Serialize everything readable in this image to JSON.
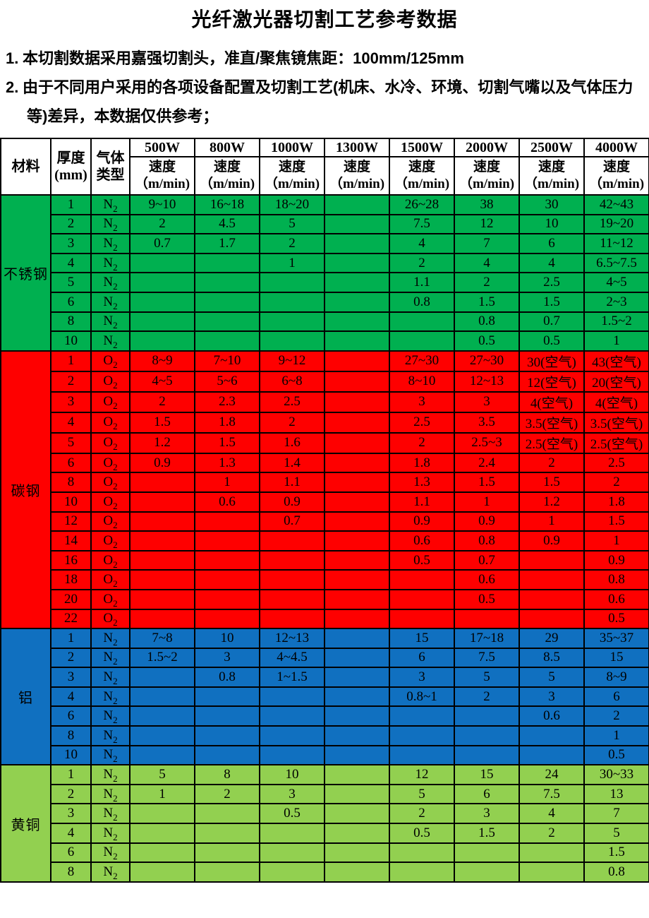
{
  "title": "光纤激光器切割工艺参考数据",
  "notes": [
    {
      "label": "1.",
      "text": "本切割数据采用嘉强切割头，准直/聚焦镜焦距：100mm/125mm"
    },
    {
      "label": "2.",
      "text": "由于不同用户采用的各项设备配置及切割工艺(机床、水冷、环境、切割气嘴以及气体压力等)差异，本数据仅供参考；"
    }
  ],
  "table": {
    "header": {
      "material": "材料",
      "thickness_line1": "厚度",
      "thickness_line2": "(mm)",
      "gas_line1": "气体",
      "gas_line2": "类型",
      "powers": [
        "500W",
        "800W",
        "1000W",
        "1300W",
        "1500W",
        "2000W",
        "2500W",
        "4000W"
      ],
      "speed_line1": "速度",
      "speed_line2": "（m/min)"
    },
    "sections": [
      {
        "material": "不锈钢",
        "color": "#00B050",
        "gas": "N2",
        "rows": [
          {
            "thickness": "1",
            "speeds": [
              "9~10",
              "16~18",
              "18~20",
              "",
              "26~28",
              "38",
              "30",
              "42~43"
            ]
          },
          {
            "thickness": "2",
            "speeds": [
              "2",
              "4.5",
              "5",
              "",
              "7.5",
              "12",
              "10",
              "19~20"
            ]
          },
          {
            "thickness": "3",
            "speeds": [
              "0.7",
              "1.7",
              "2",
              "",
              "4",
              "7",
              "6",
              "11~12"
            ]
          },
          {
            "thickness": "4",
            "speeds": [
              "",
              "",
              "1",
              "",
              "2",
              "4",
              "4",
              "6.5~7.5"
            ]
          },
          {
            "thickness": "5",
            "speeds": [
              "",
              "",
              "",
              "",
              "1.1",
              "2",
              "2.5",
              "4~5"
            ]
          },
          {
            "thickness": "6",
            "speeds": [
              "",
              "",
              "",
              "",
              "0.8",
              "1.5",
              "1.5",
              "2~3"
            ]
          },
          {
            "thickness": "8",
            "speeds": [
              "",
              "",
              "",
              "",
              "",
              "0.8",
              "0.7",
              "1.5~2"
            ]
          },
          {
            "thickness": "10",
            "speeds": [
              "",
              "",
              "",
              "",
              "",
              "0.5",
              "0.5",
              "1"
            ]
          }
        ]
      },
      {
        "material": "碳钢",
        "color": "#FE0000",
        "gas": "O2",
        "rows": [
          {
            "thickness": "1",
            "speeds": [
              "8~9",
              "7~10",
              "9~12",
              "",
              "27~30",
              "27~30",
              "30(空气)",
              "43(空气)"
            ]
          },
          {
            "thickness": "2",
            "speeds": [
              "4~5",
              "5~6",
              "6~8",
              "",
              "8~10",
              "12~13",
              "12(空气)",
              "20(空气)"
            ]
          },
          {
            "thickness": "3",
            "speeds": [
              "2",
              "2.3",
              "2.5",
              "",
              "3",
              "3",
              "4(空气)",
              "4(空气)"
            ]
          },
          {
            "thickness": "4",
            "speeds": [
              "1.5",
              "1.8",
              "2",
              "",
              "2.5",
              "3.5",
              "3.5(空气)",
              "3.5(空气)"
            ]
          },
          {
            "thickness": "5",
            "speeds": [
              "1.2",
              "1.5",
              "1.6",
              "",
              "2",
              "2.5~3",
              "2.5(空气)",
              "2.5(空气)"
            ]
          },
          {
            "thickness": "6",
            "speeds": [
              "0.9",
              "1.3",
              "1.4",
              "",
              "1.8",
              "2.4",
              "2",
              "2.5"
            ]
          },
          {
            "thickness": "8",
            "speeds": [
              "",
              "1",
              "1.1",
              "",
              "1.3",
              "1.5",
              "1.5",
              "2"
            ]
          },
          {
            "thickness": "10",
            "speeds": [
              "",
              "0.6",
              "0.9",
              "",
              "1.1",
              "1",
              "1.2",
              "1.8"
            ]
          },
          {
            "thickness": "12",
            "speeds": [
              "",
              "",
              "0.7",
              "",
              "0.9",
              "0.9",
              "1",
              "1.5"
            ]
          },
          {
            "thickness": "14",
            "speeds": [
              "",
              "",
              "",
              "",
              "0.6",
              "0.8",
              "0.9",
              "1"
            ]
          },
          {
            "thickness": "16",
            "speeds": [
              "",
              "",
              "",
              "",
              "0.5",
              "0.7",
              "",
              "0.9"
            ]
          },
          {
            "thickness": "18",
            "speeds": [
              "",
              "",
              "",
              "",
              "",
              "0.6",
              "",
              "0.8"
            ]
          },
          {
            "thickness": "20",
            "speeds": [
              "",
              "",
              "",
              "",
              "",
              "0.5",
              "",
              "0.6"
            ]
          },
          {
            "thickness": "22",
            "speeds": [
              "",
              "",
              "",
              "",
              "",
              "",
              "",
              "0.5"
            ]
          }
        ]
      },
      {
        "material": "铝",
        "color": "#1070C0",
        "gas": "N2",
        "rows": [
          {
            "thickness": "1",
            "speeds": [
              "7~8",
              "10",
              "12~13",
              "",
              "15",
              "17~18",
              "29",
              "35~37"
            ]
          },
          {
            "thickness": "2",
            "speeds": [
              "1.5~2",
              "3",
              "4~4.5",
              "",
              "6",
              "7.5",
              "8.5",
              "15"
            ]
          },
          {
            "thickness": "3",
            "speeds": [
              "",
              "0.8",
              "1~1.5",
              "",
              "3",
              "5",
              "5",
              "8~9"
            ]
          },
          {
            "thickness": "4",
            "speeds": [
              "",
              "",
              "",
              "",
              "0.8~1",
              "2",
              "3",
              "6"
            ]
          },
          {
            "thickness": "6",
            "speeds": [
              "",
              "",
              "",
              "",
              "",
              "",
              "0.6",
              "2"
            ]
          },
          {
            "thickness": "8",
            "speeds": [
              "",
              "",
              "",
              "",
              "",
              "",
              "",
              "1"
            ]
          },
          {
            "thickness": "10",
            "speeds": [
              "",
              "",
              "",
              "",
              "",
              "",
              "",
              "0.5"
            ]
          }
        ]
      },
      {
        "material": "黄铜",
        "color": "#92D050",
        "gas": "N2",
        "rows": [
          {
            "thickness": "1",
            "speeds": [
              "5",
              "8",
              "10",
              "",
              "12",
              "15",
              "24",
              "30~33"
            ]
          },
          {
            "thickness": "2",
            "speeds": [
              "1",
              "2",
              "3",
              "",
              "5",
              "6",
              "7.5",
              "13"
            ]
          },
          {
            "thickness": "3",
            "speeds": [
              "",
              "",
              "0.5",
              "",
              "2",
              "3",
              "4",
              "7"
            ]
          },
          {
            "thickness": "4",
            "speeds": [
              "",
              "",
              "",
              "",
              "0.5",
              "1.5",
              "2",
              "5"
            ]
          },
          {
            "thickness": "6",
            "speeds": [
              "",
              "",
              "",
              "",
              "",
              "",
              "",
              "1.5"
            ]
          },
          {
            "thickness": "8",
            "speeds": [
              "",
              "",
              "",
              "",
              "",
              "",
              "",
              "0.8"
            ]
          }
        ]
      }
    ]
  }
}
